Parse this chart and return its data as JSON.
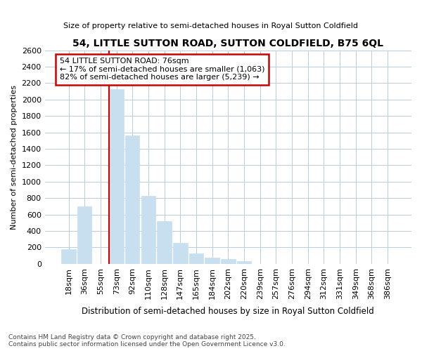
{
  "title": "54, LITTLE SUTTON ROAD, SUTTON COLDFIELD, B75 6QL",
  "subtitle": "Size of property relative to semi-detached houses in Royal Sutton Coldfield",
  "xlabel": "Distribution of semi-detached houses by size in Royal Sutton Coldfield",
  "ylabel": "Number of semi-detached properties",
  "categories": [
    "18sqm",
    "36sqm",
    "55sqm",
    "73sqm",
    "92sqm",
    "110sqm",
    "128sqm",
    "147sqm",
    "165sqm",
    "184sqm",
    "202sqm",
    "220sqm",
    "239sqm",
    "257sqm",
    "276sqm",
    "294sqm",
    "312sqm",
    "331sqm",
    "349sqm",
    "368sqm",
    "386sqm"
  ],
  "values": [
    175,
    700,
    0,
    2130,
    1560,
    830,
    520,
    255,
    130,
    80,
    55,
    30,
    0,
    0,
    0,
    0,
    0,
    0,
    0,
    0,
    0
  ],
  "bar_color": "#c8dff0",
  "bar_edge_color": "#c8dff0",
  "property_label": "54 LITTLE SUTTON ROAD: 76sqm",
  "smaller_pct": 17,
  "smaller_count": 1063,
  "larger_pct": 82,
  "larger_count": 5239,
  "vline_x_index": 3,
  "vline_color": "#cc0000",
  "annotation_box_color": "#cc0000",
  "ylim": [
    0,
    2600
  ],
  "grid_color": "#b8cfe0",
  "bg_color": "#ffffff",
  "plot_bg_color": "#ffffff",
  "footnote1": "Contains HM Land Registry data © Crown copyright and database right 2025.",
  "footnote2": "Contains public sector information licensed under the Open Government Licence v3.0."
}
